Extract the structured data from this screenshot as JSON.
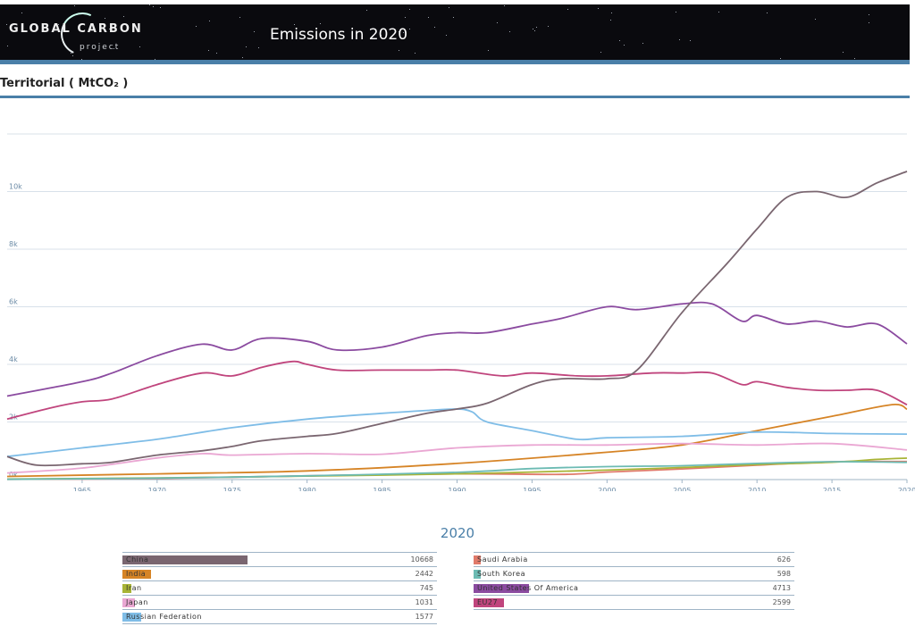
{
  "header": {
    "logo_main": "GLOBAL  CARBON",
    "logo_sub": "project",
    "title": "Emissions in 2020"
  },
  "section": {
    "title": "Territorial ( MtCO₂ )"
  },
  "colors": {
    "China": "#7a6670",
    "India": "#d68426",
    "Iran": "#a8b436",
    "Japan": "#eaa7d3",
    "Russian Federation": "#7fbde7",
    "Saudi Arabia": "#e07a6a",
    "South Korea": "#6cbbb3",
    "United States Of America": "#8b4ba0",
    "EU27": "#c0457d"
  },
  "chart_data": {
    "type": "line",
    "title": "Emissions in 2020",
    "ylabel": "Territorial ( MtCO₂ )",
    "xlabel": "",
    "xlim": [
      1960,
      2020
    ],
    "ylim": [
      0,
      12000
    ],
    "xticks": [
      1965,
      1970,
      1975,
      1980,
      1985,
      1990,
      1995,
      2000,
      2005,
      2010,
      2015,
      2020
    ],
    "yticks": [
      0,
      2000,
      4000,
      6000,
      8000,
      10000
    ],
    "ytick_labels": [
      "0k",
      "2k",
      "4k",
      "6k",
      "8k",
      "10k"
    ],
    "series": [
      {
        "name": "China",
        "x": [
          1960,
          1962,
          1965,
          1967,
          1970,
          1973,
          1975,
          1977,
          1980,
          1982,
          1985,
          1988,
          1990,
          1992,
          1995,
          1997,
          2000,
          2002,
          2005,
          2008,
          2010,
          2012,
          2014,
          2016,
          2018,
          2020
        ],
        "values": [
          800,
          500,
          550,
          600,
          850,
          1000,
          1150,
          1350,
          1500,
          1600,
          1950,
          2300,
          2450,
          2650,
          3300,
          3500,
          3500,
          3800,
          5800,
          7500,
          8700,
          9800,
          10000,
          9800,
          10300,
          10700
        ]
      },
      {
        "name": "United States Of America",
        "x": [
          1960,
          1965,
          1967,
          1970,
          1973,
          1975,
          1977,
          1980,
          1982,
          1985,
          1988,
          1990,
          1992,
          1995,
          1997,
          2000,
          2002,
          2005,
          2007,
          2009,
          2010,
          2012,
          2014,
          2016,
          2018,
          2020
        ],
        "values": [
          2900,
          3400,
          3700,
          4300,
          4700,
          4500,
          4900,
          4800,
          4500,
          4600,
          5000,
          5100,
          5100,
          5400,
          5600,
          6000,
          5900,
          6100,
          6100,
          5500,
          5700,
          5400,
          5500,
          5300,
          5400,
          4713
        ]
      },
      {
        "name": "EU27",
        "x": [
          1960,
          1963,
          1965,
          1967,
          1970,
          1973,
          1975,
          1977,
          1979,
          1980,
          1982,
          1985,
          1988,
          1990,
          1993,
          1995,
          1998,
          2000,
          2003,
          2005,
          2007,
          2009,
          2010,
          2012,
          2014,
          2016,
          2018,
          2020
        ],
        "values": [
          2100,
          2500,
          2700,
          2800,
          3300,
          3700,
          3600,
          3900,
          4100,
          4000,
          3800,
          3800,
          3800,
          3800,
          3600,
          3700,
          3600,
          3600,
          3700,
          3700,
          3700,
          3300,
          3400,
          3200,
          3100,
          3100,
          3100,
          2599
        ]
      },
      {
        "name": "Russian Federation",
        "x": [
          1960,
          1965,
          1970,
          1975,
          1980,
          1985,
          1988,
          1990,
          1991,
          1992,
          1995,
          1998,
          2000,
          2005,
          2010,
          2015,
          2020
        ],
        "values": [
          800,
          1100,
          1400,
          1800,
          2100,
          2300,
          2400,
          2450,
          2350,
          2000,
          1700,
          1400,
          1450,
          1500,
          1650,
          1600,
          1577
        ]
      },
      {
        "name": "Japan",
        "x": [
          1960,
          1965,
          1970,
          1973,
          1975,
          1980,
          1985,
          1990,
          1995,
          2000,
          2005,
          2010,
          2015,
          2020
        ],
        "values": [
          230,
          400,
          750,
          900,
          850,
          900,
          880,
          1100,
          1200,
          1200,
          1250,
          1200,
          1250,
          1031
        ]
      },
      {
        "name": "India",
        "x": [
          1960,
          1970,
          1980,
          1990,
          2000,
          2005,
          2010,
          2015,
          2019,
          2020
        ],
        "values": [
          110,
          200,
          300,
          560,
          950,
          1200,
          1700,
          2200,
          2600,
          2442
        ]
      },
      {
        "name": "South Korea",
        "x": [
          1960,
          1970,
          1980,
          1990,
          1995,
          2000,
          2005,
          2010,
          2015,
          2020
        ],
        "values": [
          10,
          50,
          130,
          250,
          380,
          450,
          480,
          560,
          620,
          598
        ]
      },
      {
        "name": "Iran",
        "x": [
          1960,
          1970,
          1980,
          1990,
          2000,
          2005,
          2010,
          2015,
          2018,
          2020
        ],
        "values": [
          20,
          60,
          120,
          200,
          330,
          420,
          520,
          600,
          700,
          745
        ]
      },
      {
        "name": "Saudi Arabia",
        "x": [
          1960,
          1970,
          1980,
          1990,
          1997,
          2000,
          2005,
          2010,
          2015,
          2020
        ],
        "values": [
          10,
          40,
          130,
          200,
          180,
          260,
          370,
          500,
          620,
          626
        ]
      }
    ]
  },
  "legend": {
    "year": "2020",
    "left": [
      {
        "name": "China",
        "value": "10668"
      },
      {
        "name": "India",
        "value": "2442"
      },
      {
        "name": "Iran",
        "value": "745"
      },
      {
        "name": "Japan",
        "value": "1031"
      },
      {
        "name": "Russian Federation",
        "value": "1577"
      }
    ],
    "right": [
      {
        "name": "Saudi Arabia",
        "value": "626"
      },
      {
        "name": "South Korea",
        "value": "598"
      },
      {
        "name": "United States Of America",
        "value": "4713"
      },
      {
        "name": "EU27",
        "value": "2599"
      }
    ]
  }
}
